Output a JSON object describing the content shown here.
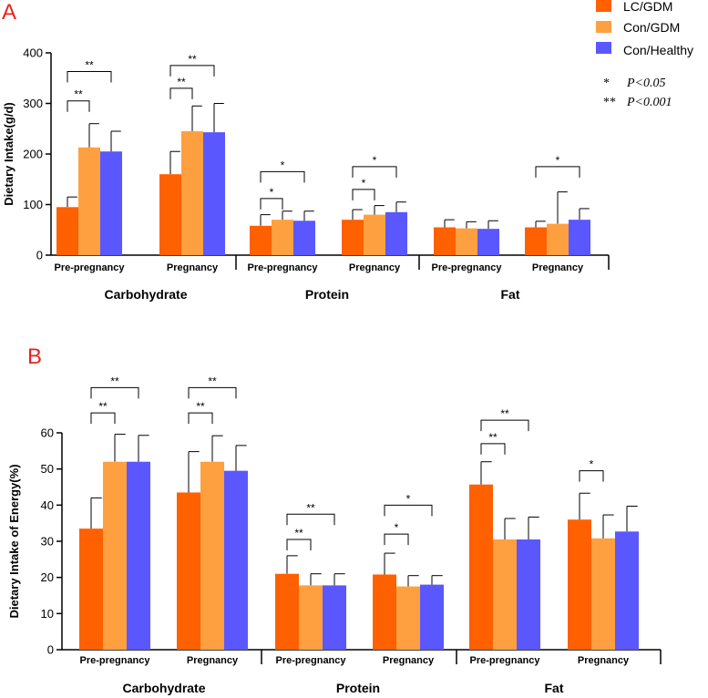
{
  "colors": {
    "lc_gdm": "#ff6000",
    "con_gdm": "#ffa040",
    "con_healthy": "#5a57ff",
    "panel_letter": "#e8231d"
  },
  "legend": {
    "entries": [
      "LC/GDM",
      "Con/GDM",
      "Con/Healthy"
    ],
    "sig_notes": [
      {
        "stars": "*",
        "text": "P<0.05"
      },
      {
        "stars": "**",
        "text": "P<0.001"
      }
    ]
  },
  "chart_data": [
    {
      "panel": "A",
      "type": "bar",
      "ylabel": "Dietary Intake(g/d)",
      "ylim": [
        0,
        400
      ],
      "yticks": [
        0,
        100,
        200,
        300,
        400
      ],
      "groups": [
        "Carbohydrate",
        "Protein",
        "Fat"
      ],
      "categories": [
        "Pre-pregnancy",
        "Pregnancy",
        "Pre-pregnancy",
        "Pregnancy",
        "Pre-pregnancy",
        "Pregnancy"
      ],
      "series": [
        {
          "name": "LC/GDM",
          "values": [
            95,
            160,
            58,
            70,
            55,
            55
          ],
          "errors": [
            115,
            205,
            80,
            90,
            70,
            67
          ]
        },
        {
          "name": "Con/GDM",
          "values": [
            213,
            245,
            70,
            80,
            53,
            62
          ],
          "errors": [
            260,
            295,
            87,
            98,
            66,
            125
          ]
        },
        {
          "name": "Con/Healthy",
          "values": [
            205,
            243,
            68,
            85,
            52,
            70
          ],
          "errors": [
            245,
            300,
            87,
            105,
            68,
            92
          ]
        }
      ],
      "significance": [
        {
          "cat": 0,
          "from": 0,
          "to": 1,
          "label": "**",
          "y": 305
        },
        {
          "cat": 0,
          "from": 0,
          "to": 2,
          "label": "**",
          "y": 363
        },
        {
          "cat": 1,
          "from": 0,
          "to": 1,
          "label": "**",
          "y": 330
        },
        {
          "cat": 1,
          "from": 0,
          "to": 2,
          "label": "**",
          "y": 375
        },
        {
          "cat": 2,
          "from": 0,
          "to": 1,
          "label": "*",
          "y": 112
        },
        {
          "cat": 2,
          "from": 0,
          "to": 2,
          "label": "*",
          "y": 165
        },
        {
          "cat": 3,
          "from": 0,
          "to": 1,
          "label": "*",
          "y": 130
        },
        {
          "cat": 3,
          "from": 0,
          "to": 2,
          "label": "*",
          "y": 175
        },
        {
          "cat": 5,
          "from": 0,
          "to": 2,
          "label": "*",
          "y": 175
        }
      ]
    },
    {
      "panel": "B",
      "type": "bar",
      "ylabel": "Dietary Intake of Energy(%)",
      "ylim": [
        0,
        60
      ],
      "yticks": [
        0,
        10,
        20,
        30,
        40,
        50,
        60
      ],
      "groups": [
        "Carbohydrate",
        "Protein",
        "Fat"
      ],
      "categories": [
        "Pre-pregnancy",
        "Pregnancy",
        "Pre-pregnancy",
        "Pregnancy",
        "Pre-pregnancy",
        "Pregnancy"
      ],
      "series": [
        {
          "name": "LC/GDM",
          "values": [
            33.5,
            43.5,
            21,
            20.8,
            45.7,
            36
          ],
          "errors": [
            42,
            54.8,
            26,
            26.7,
            52,
            43.3
          ]
        },
        {
          "name": "Con/GDM",
          "values": [
            52,
            52,
            17.8,
            17.5,
            30.5,
            30.8
          ],
          "errors": [
            59.6,
            59.2,
            21,
            20.5,
            36.3,
            37.3
          ]
        },
        {
          "name": "Con/Healthy",
          "values": [
            52,
            49.5,
            17.8,
            18,
            30.5,
            32.7
          ],
          "errors": [
            59.3,
            56.5,
            21,
            20.5,
            36.7,
            39.7
          ]
        }
      ],
      "significance": [
        {
          "cat": 0,
          "from": 0,
          "to": 1,
          "label": "**",
          "y": 65.5
        },
        {
          "cat": 0,
          "from": 0,
          "to": 2,
          "label": "**",
          "y": 72.5
        },
        {
          "cat": 1,
          "from": 0,
          "to": 1,
          "label": "**",
          "y": 65.5
        },
        {
          "cat": 1,
          "from": 0,
          "to": 2,
          "label": "**",
          "y": 72.5
        },
        {
          "cat": 2,
          "from": 0,
          "to": 1,
          "label": "**",
          "y": 30.5
        },
        {
          "cat": 2,
          "from": 0,
          "to": 2,
          "label": "**",
          "y": 37.5
        },
        {
          "cat": 3,
          "from": 0,
          "to": 1,
          "label": "*",
          "y": 32
        },
        {
          "cat": 3,
          "from": 0,
          "to": 2,
          "label": "*",
          "y": 40
        },
        {
          "cat": 4,
          "from": 0,
          "to": 1,
          "label": "**",
          "y": 57
        },
        {
          "cat": 4,
          "from": 0,
          "to": 2,
          "label": "**",
          "y": 63.5
        },
        {
          "cat": 5,
          "from": 0,
          "to": 1,
          "label": "*",
          "y": 49.5
        }
      ]
    }
  ]
}
